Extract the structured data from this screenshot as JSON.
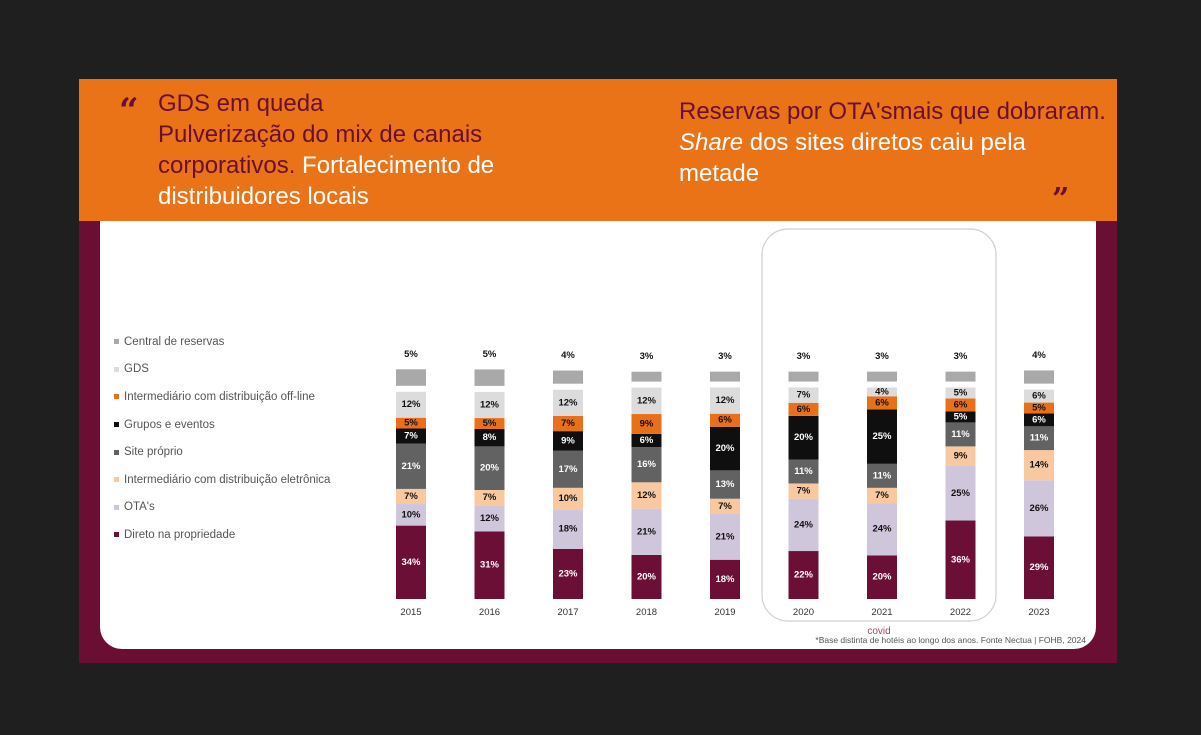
{
  "header": {
    "open_quote": "“",
    "close_quote": "”",
    "left": {
      "line1": "GDS em queda",
      "line2a": "Pulverização do mix de canais corporativos.",
      "line2b": " Fortalecimento de distribuidores locais"
    },
    "right": {
      "part1": "Reservas por OTA'smais que dobraram.",
      "part2": "Share",
      "part3": " dos sites diretos caiu pela metade"
    }
  },
  "chart_data": {
    "type": "bar",
    "stacked": true,
    "categories": [
      "2015",
      "2016",
      "2017",
      "2018",
      "2019",
      "2020",
      "2021",
      "2022",
      "2023"
    ],
    "series": [
      {
        "name": "Direto na propriedade",
        "color": "#6b0f37",
        "values": [
          34,
          31,
          23,
          20,
          18,
          22,
          20,
          36,
          29
        ]
      },
      {
        "name": "OTA's",
        "color": "#cfc6dc",
        "values": [
          10,
          12,
          18,
          21,
          21,
          24,
          24,
          25,
          26
        ]
      },
      {
        "name": "Intermediário com distribuição eletrônica",
        "color": "#f8c8a0",
        "values": [
          7,
          7,
          10,
          12,
          7,
          7,
          7,
          9,
          14
        ]
      },
      {
        "name": "Site próprio",
        "color": "#626262",
        "values": [
          21,
          20,
          17,
          16,
          13,
          11,
          11,
          11,
          11
        ]
      },
      {
        "name": "Grupos e eventos",
        "color": "#0f0f0f",
        "values": [
          7,
          8,
          9,
          6,
          20,
          20,
          25,
          5,
          6
        ]
      },
      {
        "name": "Intermediário com distribuição off-line",
        "color": "#e8701a",
        "values": [
          5,
          5,
          7,
          9,
          6,
          6,
          6,
          6,
          5
        ]
      },
      {
        "name": "GDS",
        "color": "#dcdcdc",
        "values": [
          12,
          12,
          12,
          12,
          12,
          7,
          4,
          5,
          6
        ]
      },
      {
        "name": "Central de reservas",
        "color": "#a9a9a9",
        "values": [
          5,
          5,
          4,
          3,
          3,
          3,
          3,
          3,
          4
        ]
      }
    ],
    "legend_order": [
      "Central de reservas",
      "GDS",
      "Intermediário com distribuição off-line",
      "Grupos e eventos",
      "Site próprio",
      "Intermediário com distribuição eletrônica",
      "OTA's",
      "Direto na propriedade"
    ],
    "legend_position": "left",
    "highlight": {
      "categories": [
        "2020",
        "2021",
        "2022"
      ],
      "label": "covid"
    },
    "grid": false
  },
  "footnote": "*Base distinta de hotéis ao longo dos anos. Fonte Nectua | FOHB, 2024"
}
